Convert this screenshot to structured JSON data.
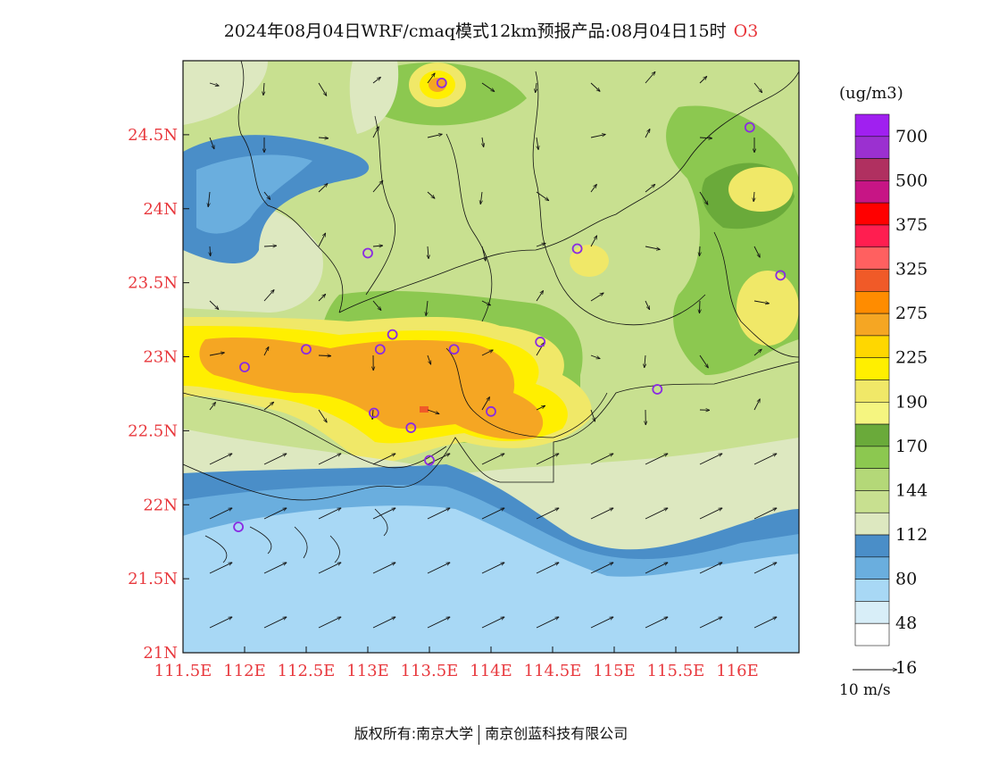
{
  "title": {
    "text": "2024年08月04日WRF/cmaq模式12km预报产品:08月04日15时",
    "species": "O3"
  },
  "map": {
    "lon_range": [
      111.5,
      116.5
    ],
    "lat_range": [
      21.0,
      25.0
    ],
    "lon_ticks": [
      "111.5E",
      "112E",
      "112.5E",
      "113E",
      "113.5E",
      "114E",
      "114.5E",
      "115E",
      "115.5E",
      "116E"
    ],
    "lon_values": [
      111.5,
      112.0,
      112.5,
      113.0,
      113.5,
      114.0,
      114.5,
      115.0,
      115.5,
      116.0
    ],
    "lat_ticks": [
      "21N",
      "21.5N",
      "22N",
      "22.5N",
      "23N",
      "23.5N",
      "24N",
      "24.5N"
    ],
    "lat_values": [
      21.0,
      21.5,
      22.0,
      22.5,
      23.0,
      23.5,
      24.0,
      24.5
    ],
    "tick_color": "#e8383d",
    "stations": [
      [
        113.6,
        24.85
      ],
      [
        116.1,
        24.55
      ],
      [
        113.0,
        23.7
      ],
      [
        114.7,
        23.73
      ],
      [
        116.35,
        23.55
      ],
      [
        113.2,
        23.15
      ],
      [
        112.5,
        23.05
      ],
      [
        113.1,
        23.05
      ],
      [
        113.7,
        23.05
      ],
      [
        114.4,
        23.1
      ],
      [
        112.0,
        22.93
      ],
      [
        115.35,
        22.78
      ],
      [
        113.05,
        22.62
      ],
      [
        113.35,
        22.52
      ],
      [
        114.0,
        22.63
      ],
      [
        113.5,
        22.3
      ],
      [
        111.95,
        21.85
      ]
    ],
    "station_color": "#8a2be2"
  },
  "legend": {
    "unit": "(ug/m3)",
    "levels": [
      "700",
      "500",
      "375",
      "325",
      "275",
      "225",
      "190",
      "170",
      "144",
      "112",
      "80",
      "48",
      "16"
    ],
    "colors": [
      "#a020f0",
      "#9b30d0",
      "#b03060",
      "#c71585",
      "#ff0000",
      "#ff1e50",
      "#ff6060",
      "#f05a28",
      "#ff8c00",
      "#f5a623",
      "#ffd700",
      "#ffef00",
      "#f0e868",
      "#f5f580",
      "#6aaa3a",
      "#8cc850",
      "#b4d878",
      "#c8e090",
      "#dde8c0",
      "#4a8ec8",
      "#6aaede",
      "#a8d8f5",
      "#d8eef8",
      "#ffffff"
    ],
    "wind_scale": "10 m/s"
  },
  "footer": {
    "left": "版权所有:南京大学",
    "right": "南京创蓝科技有限公司"
  }
}
